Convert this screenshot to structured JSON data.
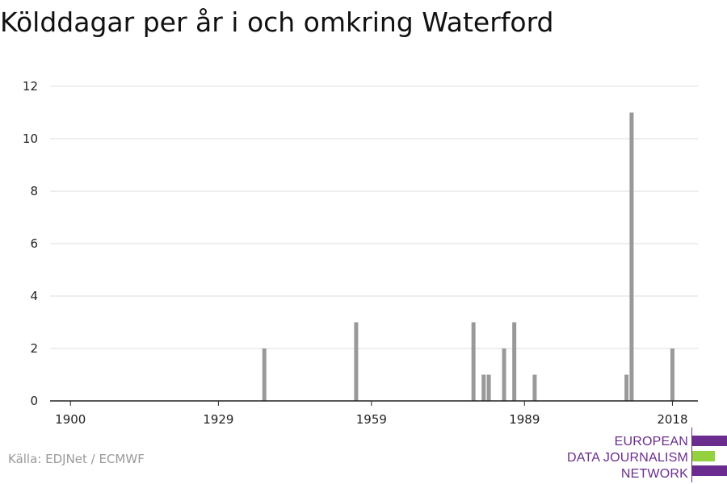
{
  "title": "Kölddagar per år i och omkring Waterford",
  "source": "Källa: EDJNet / ECMWF",
  "logo": {
    "lines": [
      "EUROPEAN",
      "DATA JOURNALISM",
      "NETWORK"
    ],
    "colors": {
      "purple": "#6a2c8f",
      "green": "#93d13f"
    }
  },
  "colors": {
    "bar": "#999999",
    "grid": "#dddddd",
    "axis": "#222222"
  },
  "chart_data": {
    "type": "bar",
    "title": "Kölddagar per år i och omkring Waterford",
    "xlabel": "",
    "ylabel": "",
    "xlim": [
      1896,
      2023
    ],
    "ylim": [
      0,
      12
    ],
    "x_ticks": [
      1900,
      1929,
      1959,
      1989,
      2018
    ],
    "y_ticks": [
      0,
      2,
      4,
      6,
      8,
      10,
      12
    ],
    "grid": true,
    "x": [
      1938,
      1956,
      1979,
      1981,
      1982,
      1985,
      1987,
      1991,
      2009,
      2010,
      2018
    ],
    "values": [
      2,
      3,
      3,
      1,
      1,
      2,
      3,
      1,
      1,
      11,
      2
    ]
  }
}
